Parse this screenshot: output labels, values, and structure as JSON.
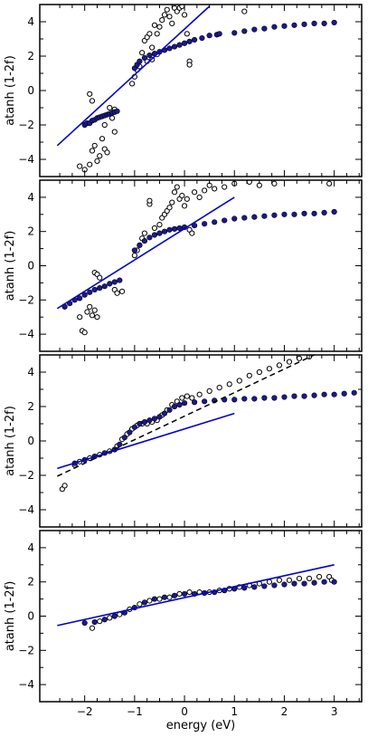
{
  "chart_data": {
    "type": "scatter",
    "layout": "4 vertically stacked panels sharing the x axis",
    "xlabel": "energy (eV)",
    "ylabel": "atanh (1-2f)",
    "xlim": [
      -2.9,
      3.55
    ],
    "ylim": [
      -5,
      5
    ],
    "x_ticks": [
      -2,
      -1,
      0,
      1,
      2,
      3
    ],
    "y_ticks": [
      -4,
      -2,
      0,
      2,
      4
    ],
    "grid": false,
    "legend": "none",
    "colors": {
      "open_markers": "#000000",
      "filled_markers": "#1a1a8c",
      "fit_line": "#0000cc",
      "dashed_line": "#000000"
    },
    "panels": [
      {
        "fit_line": [
          [
            -2.55,
            -3.2
          ],
          [
            0.5,
            4.9
          ]
        ],
        "filled_points": [
          [
            -2.0,
            -2.0
          ],
          [
            -1.95,
            -1.9
          ],
          [
            -1.9,
            -1.9
          ],
          [
            -1.85,
            -1.75
          ],
          [
            -1.8,
            -1.7
          ],
          [
            -1.75,
            -1.6
          ],
          [
            -1.7,
            -1.55
          ],
          [
            -1.65,
            -1.5
          ],
          [
            -1.6,
            -1.45
          ],
          [
            -1.55,
            -1.4
          ],
          [
            -1.5,
            -1.35
          ],
          [
            -1.45,
            -1.3
          ],
          [
            -1.4,
            -1.25
          ],
          [
            -1.35,
            -1.2
          ],
          [
            -1.0,
            1.3
          ],
          [
            -0.95,
            1.5
          ],
          [
            -0.9,
            1.7
          ],
          [
            -0.8,
            1.9
          ],
          [
            -0.7,
            2.05
          ],
          [
            -0.6,
            2.15
          ],
          [
            -0.5,
            2.25
          ],
          [
            -0.4,
            2.35
          ],
          [
            -0.3,
            2.45
          ],
          [
            -0.2,
            2.55
          ],
          [
            -0.1,
            2.65
          ],
          [
            0.0,
            2.75
          ],
          [
            0.1,
            2.85
          ],
          [
            0.2,
            2.95
          ],
          [
            0.35,
            3.05
          ],
          [
            0.5,
            3.2
          ],
          [
            0.65,
            3.25
          ],
          [
            0.7,
            3.3
          ],
          [
            1.0,
            3.35
          ],
          [
            1.2,
            3.45
          ],
          [
            1.4,
            3.55
          ],
          [
            1.6,
            3.6
          ],
          [
            1.8,
            3.7
          ],
          [
            2.0,
            3.75
          ],
          [
            2.2,
            3.8
          ],
          [
            2.4,
            3.85
          ],
          [
            2.6,
            3.9
          ],
          [
            2.8,
            3.9
          ],
          [
            3.0,
            3.95
          ]
        ],
        "open_points": [
          [
            -2.1,
            -4.4
          ],
          [
            -2.0,
            -4.6
          ],
          [
            -1.9,
            -4.3
          ],
          [
            -1.85,
            -3.5
          ],
          [
            -1.8,
            -3.2
          ],
          [
            -1.75,
            -4.1
          ],
          [
            -1.7,
            -3.8
          ],
          [
            -1.65,
            -2.8
          ],
          [
            -1.6,
            -3.4
          ],
          [
            -1.9,
            -0.2
          ],
          [
            -1.85,
            -0.6
          ],
          [
            -1.6,
            -2.0
          ],
          [
            -1.55,
            -3.6
          ],
          [
            -1.5,
            -1.0
          ],
          [
            -1.45,
            -1.6
          ],
          [
            -1.4,
            -1.1
          ],
          [
            -1.4,
            -2.4
          ],
          [
            -1.05,
            0.4
          ],
          [
            -1.0,
            0.8
          ],
          [
            -0.95,
            1.2
          ],
          [
            -0.9,
            1.4
          ],
          [
            -0.85,
            2.2
          ],
          [
            -0.8,
            2.9
          ],
          [
            -0.75,
            3.1
          ],
          [
            -0.7,
            3.3
          ],
          [
            -0.65,
            2.5
          ],
          [
            -0.6,
            3.8
          ],
          [
            -0.55,
            3.3
          ],
          [
            -0.5,
            3.7
          ],
          [
            -0.45,
            4.1
          ],
          [
            -0.4,
            4.4
          ],
          [
            -0.35,
            4.7
          ],
          [
            -0.3,
            4.3
          ],
          [
            -0.25,
            3.9
          ],
          [
            -0.2,
            4.8
          ],
          [
            -0.15,
            4.6
          ],
          [
            -0.1,
            4.8
          ],
          [
            -0.05,
            4.9
          ],
          [
            0.0,
            4.4
          ],
          [
            0.05,
            3.3
          ],
          [
            0.1,
            1.7
          ],
          [
            0.1,
            1.5
          ],
          [
            1.2,
            4.6
          ],
          [
            -0.75,
            1.7
          ],
          [
            -0.65,
            1.8
          ],
          [
            -0.55,
            2.1
          ]
        ]
      },
      {
        "fit_line": [
          [
            -2.55,
            -2.5
          ],
          [
            1.0,
            4.0
          ]
        ],
        "filled_points": [
          [
            -2.4,
            -2.4
          ],
          [
            -2.3,
            -2.2
          ],
          [
            -2.2,
            -2.0
          ],
          [
            -2.1,
            -1.9
          ],
          [
            -2.0,
            -1.7
          ],
          [
            -1.9,
            -1.55
          ],
          [
            -1.8,
            -1.4
          ],
          [
            -1.7,
            -1.3
          ],
          [
            -1.6,
            -1.2
          ],
          [
            -1.5,
            -1.05
          ],
          [
            -1.4,
            -0.95
          ],
          [
            -1.3,
            -0.85
          ],
          [
            -1.0,
            0.9
          ],
          [
            -0.9,
            1.2
          ],
          [
            -0.8,
            1.45
          ],
          [
            -0.7,
            1.65
          ],
          [
            -0.6,
            1.8
          ],
          [
            -0.5,
            1.9
          ],
          [
            -0.4,
            2.0
          ],
          [
            -0.3,
            2.1
          ],
          [
            -0.2,
            2.15
          ],
          [
            -0.1,
            2.2
          ],
          [
            0.0,
            2.25
          ],
          [
            0.2,
            2.35
          ],
          [
            0.4,
            2.45
          ],
          [
            0.6,
            2.55
          ],
          [
            0.8,
            2.65
          ],
          [
            1.0,
            2.75
          ],
          [
            1.2,
            2.8
          ],
          [
            1.4,
            2.85
          ],
          [
            1.6,
            2.9
          ],
          [
            1.8,
            2.95
          ],
          [
            2.0,
            3.0
          ],
          [
            2.2,
            3.0
          ],
          [
            2.4,
            3.05
          ],
          [
            2.6,
            3.05
          ],
          [
            2.8,
            3.1
          ],
          [
            3.0,
            3.15
          ]
        ],
        "open_points": [
          [
            -2.1,
            -3.0
          ],
          [
            -2.05,
            -3.8
          ],
          [
            -2.0,
            -3.9
          ],
          [
            -1.95,
            -2.7
          ],
          [
            -1.9,
            -2.4
          ],
          [
            -1.85,
            -2.9
          ],
          [
            -1.8,
            -2.6
          ],
          [
            -1.75,
            -3.0
          ],
          [
            -1.8,
            -0.4
          ],
          [
            -1.75,
            -0.5
          ],
          [
            -1.7,
            -0.7
          ],
          [
            -1.4,
            -1.4
          ],
          [
            -1.35,
            -1.6
          ],
          [
            -1.25,
            -1.5
          ],
          [
            -1.0,
            0.6
          ],
          [
            -0.95,
            0.9
          ],
          [
            -0.9,
            1.2
          ],
          [
            -0.85,
            1.6
          ],
          [
            -0.8,
            1.9
          ],
          [
            -0.7,
            3.6
          ],
          [
            -0.7,
            3.8
          ],
          [
            -0.6,
            2.2
          ],
          [
            -0.5,
            2.4
          ],
          [
            -0.45,
            2.8
          ],
          [
            -0.4,
            3.0
          ],
          [
            -0.35,
            3.2
          ],
          [
            -0.3,
            3.4
          ],
          [
            -0.25,
            3.7
          ],
          [
            -0.2,
            4.3
          ],
          [
            -0.15,
            4.6
          ],
          [
            -0.1,
            3.9
          ],
          [
            -0.05,
            4.1
          ],
          [
            0.0,
            3.5
          ],
          [
            0.05,
            3.9
          ],
          [
            0.1,
            2.1
          ],
          [
            0.15,
            1.9
          ],
          [
            0.2,
            4.3
          ],
          [
            0.3,
            4.0
          ],
          [
            0.4,
            4.4
          ],
          [
            0.5,
            4.7
          ],
          [
            0.6,
            4.5
          ],
          [
            0.8,
            4.6
          ],
          [
            1.0,
            4.8
          ],
          [
            1.3,
            4.9
          ],
          [
            1.5,
            4.7
          ],
          [
            1.8,
            4.8
          ],
          [
            2.9,
            4.8
          ]
        ]
      },
      {
        "fit_line": [
          [
            -2.55,
            -1.6
          ],
          [
            1.0,
            1.6
          ]
        ],
        "dashed_line": [
          [
            -2.55,
            -2.05
          ],
          [
            2.6,
            5.0
          ]
        ],
        "filled_points": [
          [
            -2.2,
            -1.3
          ],
          [
            -2.0,
            -1.1
          ],
          [
            -1.8,
            -0.9
          ],
          [
            -1.6,
            -0.7
          ],
          [
            -1.4,
            -0.5
          ],
          [
            -1.3,
            -0.2
          ],
          [
            -1.2,
            0.2
          ],
          [
            -1.1,
            0.5
          ],
          [
            -1.0,
            0.8
          ],
          [
            -0.9,
            1.0
          ],
          [
            -0.8,
            1.1
          ],
          [
            -0.7,
            1.2
          ],
          [
            -0.6,
            1.3
          ],
          [
            -0.5,
            1.4
          ],
          [
            -0.4,
            1.6
          ],
          [
            -0.3,
            1.8
          ],
          [
            -0.2,
            2.0
          ],
          [
            -0.1,
            2.1
          ],
          [
            0.0,
            2.2
          ],
          [
            0.2,
            2.25
          ],
          [
            0.4,
            2.3
          ],
          [
            0.6,
            2.35
          ],
          [
            0.8,
            2.4
          ],
          [
            1.0,
            2.4
          ],
          [
            1.2,
            2.45
          ],
          [
            1.4,
            2.45
          ],
          [
            1.6,
            2.5
          ],
          [
            1.8,
            2.5
          ],
          [
            2.0,
            2.55
          ],
          [
            2.2,
            2.6
          ],
          [
            2.4,
            2.6
          ],
          [
            2.6,
            2.65
          ],
          [
            2.8,
            2.7
          ],
          [
            3.0,
            2.7
          ],
          [
            3.2,
            2.75
          ],
          [
            3.4,
            2.8
          ]
        ],
        "open_points": [
          [
            -2.45,
            -2.8
          ],
          [
            -2.4,
            -2.6
          ],
          [
            -2.2,
            -1.4
          ],
          [
            -2.1,
            -1.2
          ],
          [
            -1.9,
            -1.0
          ],
          [
            -1.7,
            -0.8
          ],
          [
            -1.5,
            -0.6
          ],
          [
            -1.35,
            -0.3
          ],
          [
            -1.25,
            0.1
          ],
          [
            -1.15,
            0.4
          ],
          [
            -1.05,
            0.7
          ],
          [
            -0.95,
            0.9
          ],
          [
            -0.85,
            1.0
          ],
          [
            -0.75,
            1.0
          ],
          [
            -0.65,
            1.1
          ],
          [
            -0.55,
            1.2
          ],
          [
            -0.45,
            1.5
          ],
          [
            -0.35,
            1.8
          ],
          [
            -0.25,
            2.1
          ],
          [
            -0.15,
            2.3
          ],
          [
            -0.05,
            2.5
          ],
          [
            0.05,
            2.6
          ],
          [
            0.15,
            2.5
          ],
          [
            0.3,
            2.7
          ],
          [
            0.5,
            2.9
          ],
          [
            0.7,
            3.1
          ],
          [
            0.9,
            3.3
          ],
          [
            1.1,
            3.5
          ],
          [
            1.3,
            3.8
          ],
          [
            1.5,
            4.0
          ],
          [
            1.7,
            4.2
          ],
          [
            1.9,
            4.4
          ],
          [
            2.1,
            4.6
          ],
          [
            2.3,
            4.8
          ],
          [
            2.5,
            4.9
          ]
        ]
      },
      {
        "fit_line": [
          [
            -2.55,
            -0.55
          ],
          [
            3.0,
            3.0
          ]
        ],
        "filled_points": [
          [
            -2.0,
            -0.4
          ],
          [
            -1.8,
            -0.35
          ],
          [
            -1.6,
            -0.2
          ],
          [
            -1.4,
            0.0
          ],
          [
            -1.2,
            0.2
          ],
          [
            -1.0,
            0.5
          ],
          [
            -0.8,
            0.8
          ],
          [
            -0.6,
            1.0
          ],
          [
            -0.4,
            1.1
          ],
          [
            -0.2,
            1.2
          ],
          [
            0.0,
            1.3
          ],
          [
            0.2,
            1.3
          ],
          [
            0.4,
            1.35
          ],
          [
            0.6,
            1.4
          ],
          [
            0.8,
            1.5
          ],
          [
            1.0,
            1.6
          ],
          [
            1.2,
            1.65
          ],
          [
            1.4,
            1.7
          ],
          [
            1.6,
            1.75
          ],
          [
            1.8,
            1.8
          ],
          [
            2.0,
            1.85
          ],
          [
            2.2,
            1.9
          ],
          [
            2.4,
            1.9
          ],
          [
            2.6,
            1.95
          ],
          [
            2.8,
            2.0
          ],
          [
            3.0,
            2.0
          ]
        ],
        "open_points": [
          [
            -1.85,
            -0.7
          ],
          [
            -1.7,
            -0.3
          ],
          [
            -1.5,
            -0.1
          ],
          [
            -1.3,
            0.1
          ],
          [
            -1.1,
            0.4
          ],
          [
            -0.9,
            0.7
          ],
          [
            -0.7,
            0.9
          ],
          [
            -0.5,
            1.0
          ],
          [
            -0.3,
            1.1
          ],
          [
            -0.1,
            1.3
          ],
          [
            0.1,
            1.4
          ],
          [
            0.3,
            1.4
          ],
          [
            0.5,
            1.4
          ],
          [
            0.7,
            1.5
          ],
          [
            0.9,
            1.6
          ],
          [
            1.1,
            1.7
          ],
          [
            1.3,
            1.8
          ],
          [
            1.5,
            1.9
          ],
          [
            1.7,
            2.0
          ],
          [
            1.9,
            2.1
          ],
          [
            2.1,
            2.1
          ],
          [
            2.3,
            2.2
          ],
          [
            2.5,
            2.2
          ],
          [
            2.7,
            2.3
          ],
          [
            2.9,
            2.3
          ],
          [
            2.95,
            2.1
          ]
        ]
      }
    ]
  }
}
